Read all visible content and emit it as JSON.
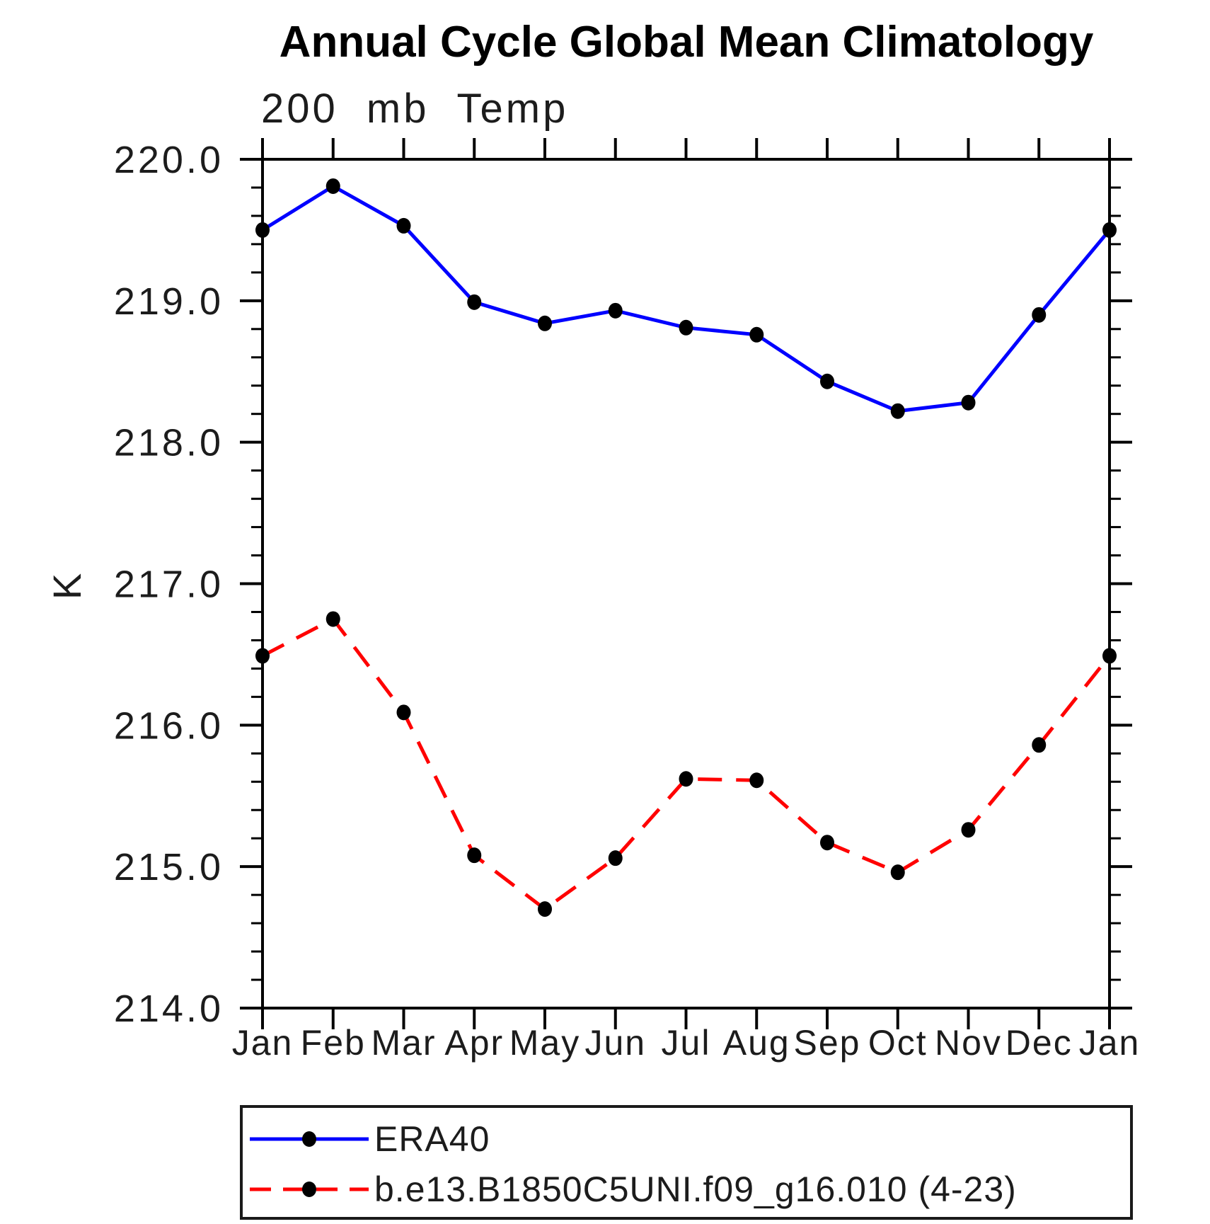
{
  "title": "Annual Cycle Global Mean Climatology",
  "subtitle": "200 mb Temp",
  "y_axis_unit": "K",
  "chart_data": {
    "type": "line",
    "title": "Annual Cycle Global Mean Climatology",
    "subtitle": "200 mb Temp",
    "ylabel": "K",
    "ylim": [
      214.0,
      220.0
    ],
    "y_major_tick_labels": [
      "220.0",
      "219.0",
      "218.0",
      "217.0",
      "216.0",
      "215.0",
      "214.0"
    ],
    "y_major_step": 1.0,
    "y_minor_step": 0.2,
    "grid": false,
    "legend_position": "bottom-left-box",
    "x_categories": [
      "Jan",
      "Feb",
      "Mar",
      "Apr",
      "May",
      "Jun",
      "Jul",
      "Aug",
      "Sep",
      "Oct",
      "Nov",
      "Dec",
      "Jan"
    ],
    "series": [
      {
        "name": "ERA40",
        "color": "#0000ff",
        "line_style": "solid",
        "marker": "filled-circle",
        "marker_color": "#000000",
        "values": [
          219.5,
          219.81,
          219.53,
          218.99,
          218.84,
          218.93,
          218.81,
          218.76,
          218.43,
          218.22,
          218.28,
          218.9,
          219.5
        ]
      },
      {
        "name": "b.e13.B1850C5UNI.f09_g16.010 (4-23)",
        "color": "#ff0000",
        "line_style": "dashed",
        "marker": "filled-circle",
        "marker_color": "#000000",
        "values": [
          216.49,
          216.75,
          216.09,
          215.08,
          214.7,
          215.06,
          215.62,
          215.61,
          215.17,
          214.96,
          215.26,
          215.86,
          216.49
        ]
      }
    ]
  }
}
